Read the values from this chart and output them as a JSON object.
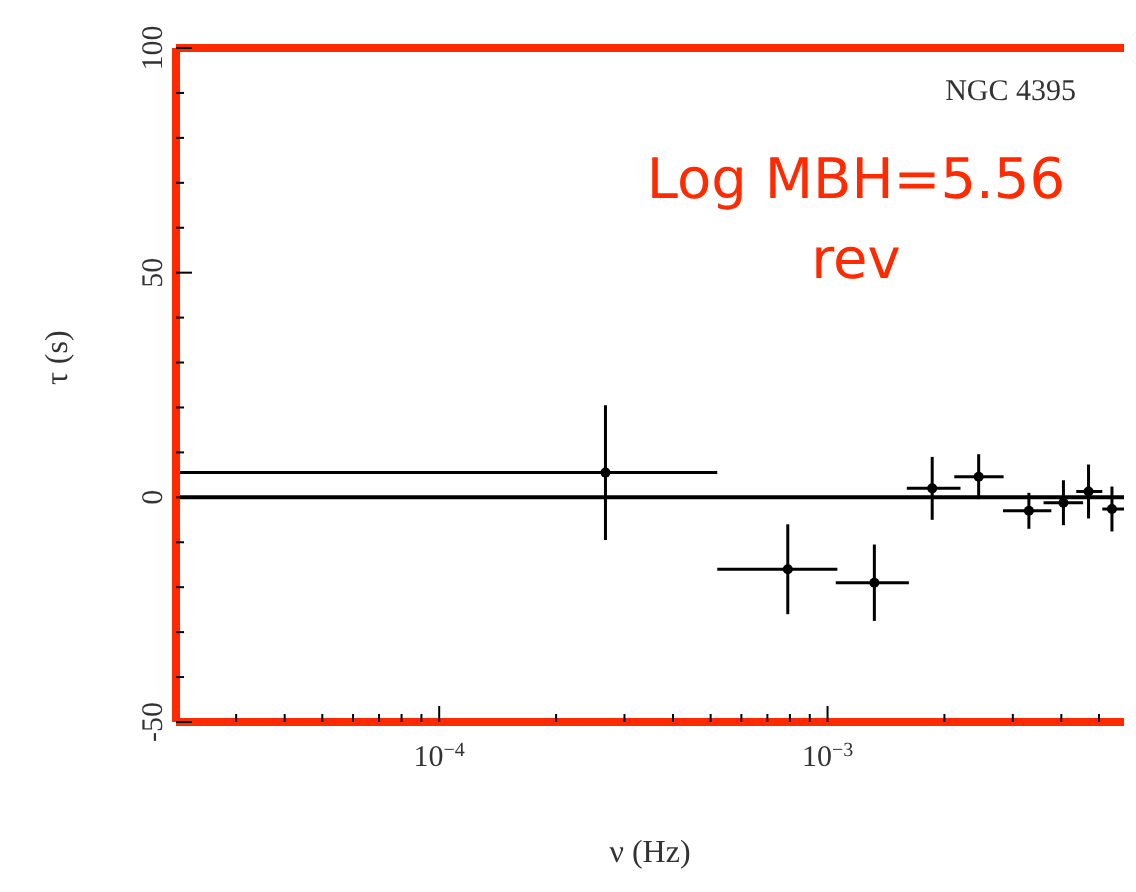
{
  "chart_data": {
    "type": "scatter",
    "xlabel": "ν (Hz)",
    "ylabel": "τ (s)",
    "log": "x",
    "xlim": [
      2.1e-05,
      0.0058
    ],
    "ylim": [
      -50,
      100
    ],
    "xticks": [
      {
        "value": 3e-05,
        "label": null
      },
      {
        "value": 4e-05,
        "label": null
      },
      {
        "value": 5e-05,
        "label": null
      },
      {
        "value": 6e-05,
        "label": null
      },
      {
        "value": 7e-05,
        "label": null
      },
      {
        "value": 8e-05,
        "label": null
      },
      {
        "value": 9e-05,
        "label": null
      },
      {
        "value": 0.0001,
        "label": "10$^{−4}$"
      },
      {
        "value": 0.0002,
        "label": null
      },
      {
        "value": 0.0003,
        "label": null
      },
      {
        "value": 0.0004,
        "label": null
      },
      {
        "value": 0.0005,
        "label": null
      },
      {
        "value": 0.0006,
        "label": null
      },
      {
        "value": 0.0007,
        "label": null
      },
      {
        "value": 0.0008,
        "label": null
      },
      {
        "value": 0.0009,
        "label": null
      },
      {
        "value": 0.001,
        "label": "10$^{−3}$"
      },
      {
        "value": 0.002,
        "label": null
      },
      {
        "value": 0.003,
        "label": null
      },
      {
        "value": 0.004,
        "label": null
      },
      {
        "value": 0.005,
        "label": null
      }
    ],
    "yticks": [
      -50,
      {
        "value": -40,
        "label": null
      },
      {
        "value": -30,
        "label": null
      },
      {
        "value": -20,
        "label": null
      },
      {
        "value": -10,
        "label": null
      },
      0,
      {
        "value": 10,
        "label": null
      },
      {
        "value": 20,
        "label": null
      },
      {
        "value": 30,
        "label": null
      },
      {
        "value": 40,
        "label": null
      },
      50,
      {
        "value": 60,
        "label": null
      },
      {
        "value": 70,
        "label": null
      },
      {
        "value": 80,
        "label": null
      },
      {
        "value": 90,
        "label": null
      },
      100
    ],
    "x": [
      0.000268,
      0.00079,
      0.00132,
      0.00186,
      0.00245,
      0.0033,
      0.00405,
      0.0047,
      0.0054
    ],
    "values": [
      5.5,
      -16,
      -19,
      2,
      4.6,
      -3,
      -1.2,
      1.3,
      -2.6
    ],
    "errors": [
      15,
      10,
      8.5,
      7,
      5,
      4,
      5,
      6,
      5
    ],
    "xerrors": [
      [
        2.1e-05,
        0.00052
      ],
      [
        0.00052,
        0.00106
      ],
      [
        0.00105,
        0.00162
      ],
      [
        0.0016,
        0.0022
      ],
      [
        0.00212,
        0.00284
      ],
      [
        0.00283,
        0.00377
      ],
      [
        0.0036,
        0.00455
      ],
      [
        0.00437,
        0.0051
      ],
      [
        0.0051,
        0.0058
      ]
    ],
    "color": "#000000",
    "marker": "circle",
    "ref_lines": [
      {
        "axis": "y",
        "value": 0,
        "label": null,
        "color": "#000000"
      }
    ],
    "annotations": [
      "NGC 4395",
      "Log MBH=5.56",
      "rev"
    ]
  }
}
